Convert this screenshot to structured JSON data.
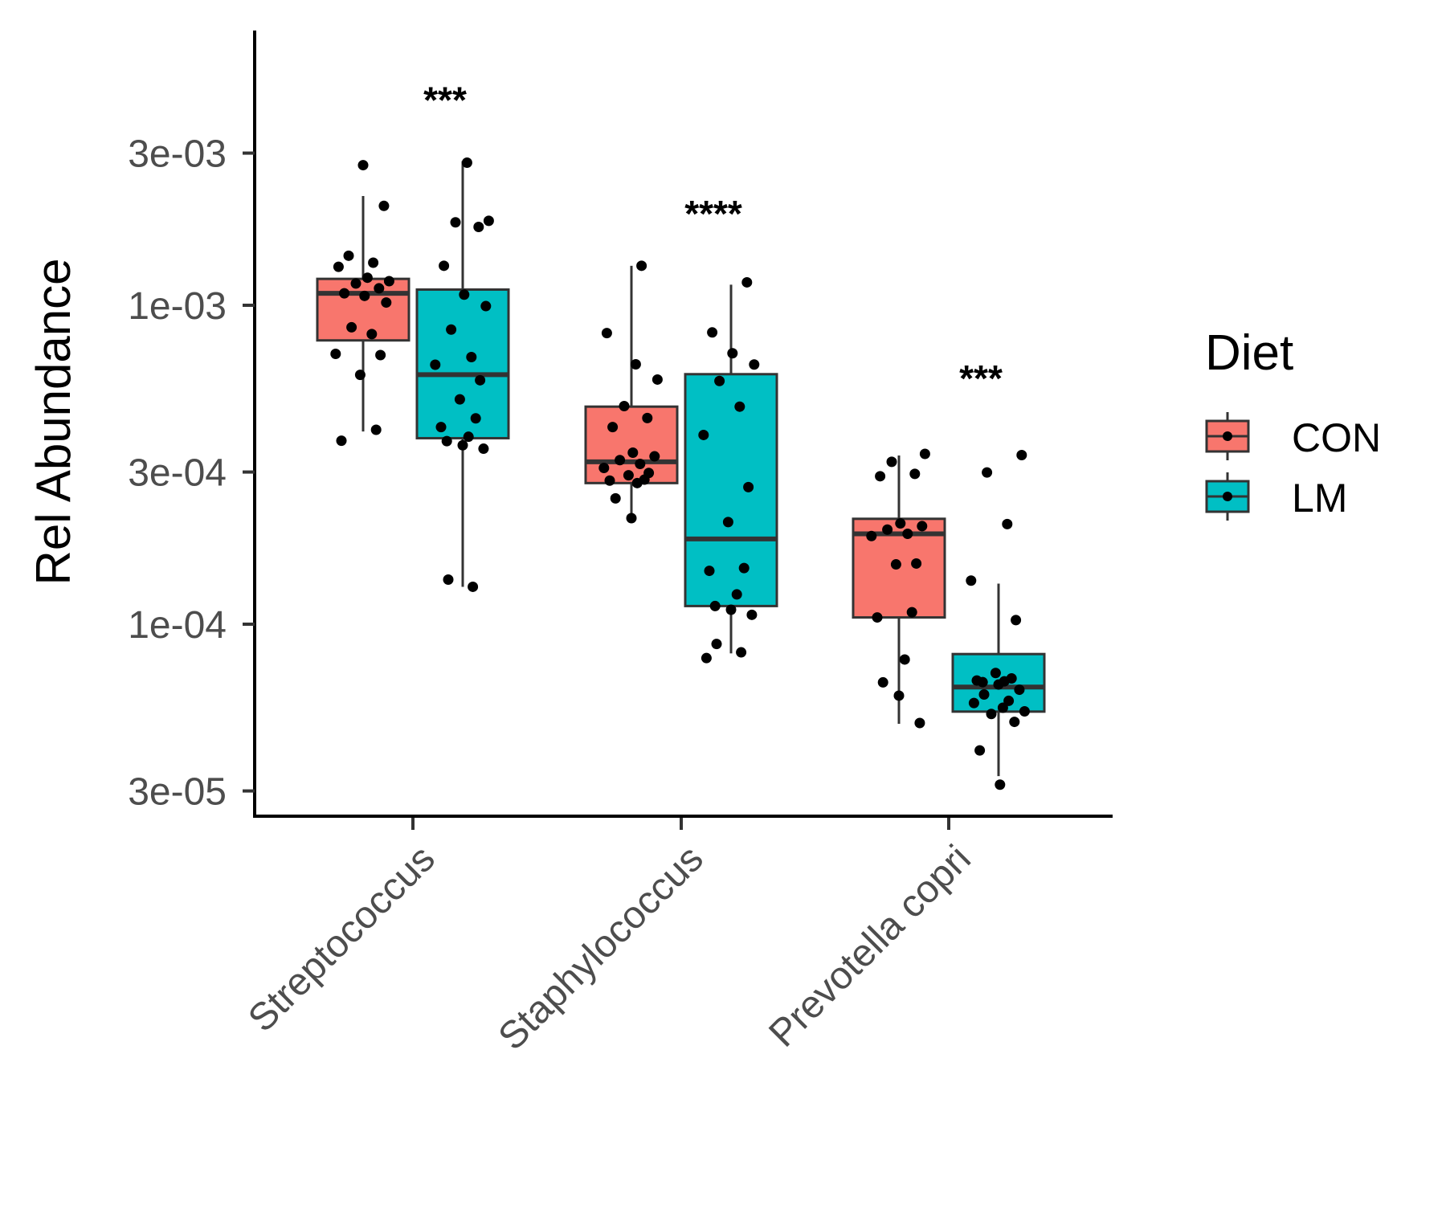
{
  "chart_data": {
    "type": "box",
    "title": "",
    "xlabel": "",
    "ylabel": "Rel Abundance",
    "yscale": "log10",
    "ylim": [
      2.6e-05,
      0.0065
    ],
    "yticks": [
      3e-05,
      0.0001,
      0.0003,
      0.001,
      0.003
    ],
    "ytick_labels": [
      "3e-05",
      "1e-04",
      "3e-04",
      "1e-03",
      "3e-03"
    ],
    "categories": [
      "Streptococcus",
      "Staphylococcus",
      "Prevotella copri"
    ],
    "legend": {
      "title": "Diet",
      "position": "right",
      "entries": [
        {
          "name": "CON",
          "color": "#F8766D"
        },
        {
          "name": "LM",
          "color": "#00BFC4"
        }
      ]
    },
    "significance": [
      "***",
      "****",
      "***"
    ],
    "series": [
      {
        "name": "CON",
        "color": "#F8766D",
        "boxes": [
          {
            "whisker_low": 0.000402,
            "q1": 0.000776,
            "median": 0.00109,
            "q3": 0.00121,
            "whisker_high": 0.0022,
            "points": [
              0.00275,
              0.00205,
              0.00143,
              0.00136,
              0.00132,
              0.00122,
              0.00119,
              0.00117,
              0.00113,
              0.00109,
              0.00107,
              0.00102,
              0.000853,
              0.000812,
              0.000704,
              0.000698,
              0.000605,
              0.000407,
              0.000376
            ]
          },
          {
            "whisker_low": 0.00021,
            "q1": 0.000277,
            "median": 0.000323,
            "q3": 0.000481,
            "whisker_high": 0.00133,
            "points": [
              0.00133,
              0.000818,
              0.000653,
              0.000585,
              0.000483,
              0.000443,
              0.000415,
              0.000345,
              0.000336,
              0.000327,
              0.000318,
              0.000309,
              0.000298,
              0.000293,
              0.000284,
              0.000282,
              0.000277,
              0.000248,
              0.000215
            ]
          },
          {
            "whisker_low": 4.87e-05,
            "q1": 0.000105,
            "median": 0.000192,
            "q3": 0.000214,
            "whisker_high": 0.000338,
            "points": [
              0.000342,
              0.000323,
              0.000296,
              0.000291,
              0.000207,
              0.000203,
              0.000198,
              0.000192,
              0.000189,
              0.000155,
              0.000154,
              0.000109,
              0.000105,
              7.75e-05,
              6.57e-05,
              5.97e-05,
              4.9e-05
            ]
          }
        ]
      },
      {
        "name": "LM",
        "color": "#00BFC4",
        "boxes": [
          {
            "whisker_low": 0.000131,
            "q1": 0.000383,
            "median": 0.000606,
            "q3": 0.00112,
            "whisker_high": 0.00283,
            "points": [
              0.0028,
              0.00184,
              0.00182,
              0.00176,
              0.00133,
              0.00108,
              0.000994,
              0.000839,
              0.000688,
              0.000651,
              0.000582,
              0.000507,
              0.000442,
              0.000415,
              0.000387,
              0.000375,
              0.000364,
              0.000355,
              0.000138,
              0.000131
            ]
          },
          {
            "whisker_low": 8.1e-05,
            "q1": 0.000114,
            "median": 0.000185,
            "q3": 0.000608,
            "whisker_high": 0.00116,
            "points": [
              0.00118,
              0.000822,
              0.000707,
              0.000652,
              0.000579,
              0.000481,
              0.000392,
              0.000269,
              0.000209,
              0.00015,
              0.000147,
              0.000124,
              0.000114,
              0.000111,
              0.000107,
              8.67e-05,
              8.16e-05,
              7.83e-05
            ]
          },
          {
            "whisker_low": 3.34e-05,
            "q1": 5.32e-05,
            "median": 6.35e-05,
            "q3": 8.06e-05,
            "whisker_high": 0.000134,
            "points": [
              0.000339,
              0.000299,
              0.000206,
              0.000137,
              0.000103,
              7.03e-05,
              6.76e-05,
              6.66e-05,
              6.62e-05,
              6.58e-05,
              6.47e-05,
              6.23e-05,
              6.02e-05,
              5.75e-05,
              5.66e-05,
              5.47e-05,
              5.33e-05,
              5.23e-05,
              4.94e-05,
              4.02e-05,
              3.14e-05
            ]
          }
        ]
      }
    ]
  }
}
